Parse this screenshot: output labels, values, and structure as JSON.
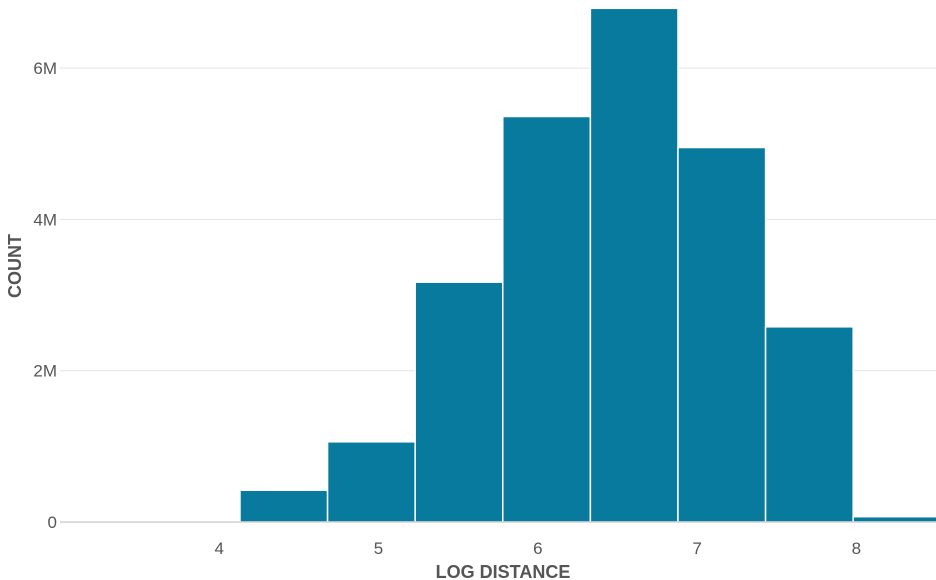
{
  "chart_data": {
    "type": "bar",
    "subtype": "histogram",
    "xlabel": "LOG DISTANCE",
    "ylabel": "COUNT",
    "color": "#077a9d",
    "xlim": [
      3.0,
      8.5
    ],
    "ylim": [
      0,
      6900000
    ],
    "x_ticks": [
      {
        "value": 4,
        "label": "4"
      },
      {
        "value": 5,
        "label": "5"
      },
      {
        "value": 6,
        "label": "6"
      },
      {
        "value": 7,
        "label": "7"
      },
      {
        "value": 8,
        "label": "8"
      }
    ],
    "y_ticks": [
      {
        "value": 0,
        "label": "0"
      },
      {
        "value": 2000000,
        "label": "2M"
      },
      {
        "value": 4000000,
        "label": "4M"
      },
      {
        "value": 6000000,
        "label": "6M"
      }
    ],
    "grid": true,
    "bins": [
      {
        "x0": 3.0,
        "x1": 3.58,
        "value": 10000
      },
      {
        "x0": 3.58,
        "x1": 4.13,
        "value": 8000
      },
      {
        "x0": 4.13,
        "x1": 4.68,
        "value": 420000
      },
      {
        "x0": 4.68,
        "x1": 5.23,
        "value": 1060000
      },
      {
        "x0": 5.23,
        "x1": 5.78,
        "value": 3170000
      },
      {
        "x0": 5.78,
        "x1": 6.33,
        "value": 5360000
      },
      {
        "x0": 6.33,
        "x1": 6.88,
        "value": 6790000
      },
      {
        "x0": 6.88,
        "x1": 7.43,
        "value": 4950000
      },
      {
        "x0": 7.43,
        "x1": 7.98,
        "value": 2580000
      },
      {
        "x0": 7.98,
        "x1": 8.53,
        "value": 70000
      }
    ]
  }
}
